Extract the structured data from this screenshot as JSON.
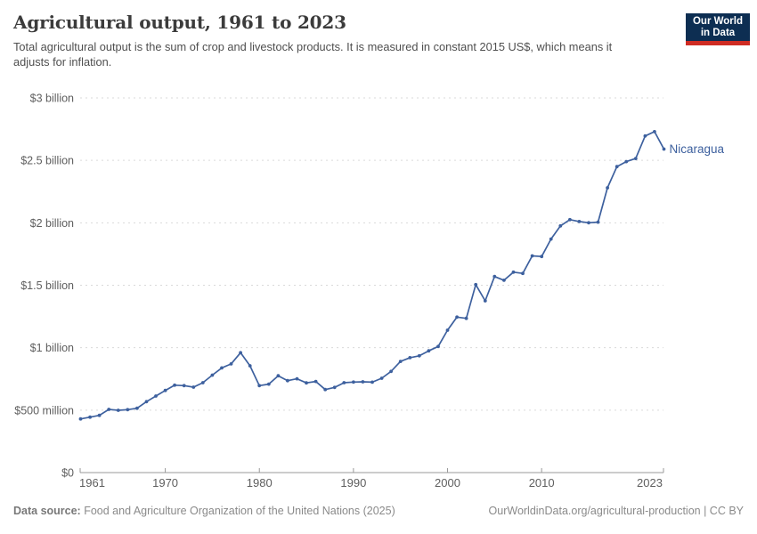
{
  "header": {
    "title": "Agricultural output, 1961 to 2023",
    "subtitle": "Total agricultural output is the sum of crop and livestock products. It is measured in constant 2015 US$, which means it adjusts for inflation.",
    "logo": {
      "line1": "Our World",
      "line2": "in Data",
      "bg_color": "#0d2e52",
      "bar_color": "#cf2c23"
    }
  },
  "chart_data": {
    "type": "line",
    "title": "Agricultural output, 1961 to 2023",
    "entity_label": "Nicaragua",
    "unit": "constant 2015 US$",
    "values_unit": "million US$",
    "line_color": "#3d609e",
    "grid": true,
    "legend_position": "end-of-line",
    "xlim": [
      1961,
      2023
    ],
    "ylim": [
      0,
      3000
    ],
    "x_ticks": [
      1961,
      1970,
      1980,
      1990,
      2000,
      2010,
      2023
    ],
    "y_ticks": [
      {
        "label": "$0",
        "value": 0
      },
      {
        "label": "$500 million",
        "value": 500
      },
      {
        "label": "$1 billion",
        "value": 1000
      },
      {
        "label": "$1.5 billion",
        "value": 1500
      },
      {
        "label": "$2 billion",
        "value": 2000
      },
      {
        "label": "$2.5 billion",
        "value": 2500
      },
      {
        "label": "$3 billion",
        "value": 3000
      }
    ],
    "x": [
      1961,
      1962,
      1963,
      1964,
      1965,
      1966,
      1967,
      1968,
      1969,
      1970,
      1971,
      1972,
      1973,
      1974,
      1975,
      1976,
      1977,
      1978,
      1979,
      1980,
      1981,
      1982,
      1983,
      1984,
      1985,
      1986,
      1987,
      1988,
      1989,
      1990,
      1991,
      1992,
      1993,
      1994,
      1995,
      1996,
      1997,
      1998,
      1999,
      2000,
      2001,
      2002,
      2003,
      2004,
      2005,
      2006,
      2007,
      2008,
      2009,
      2010,
      2011,
      2012,
      2013,
      2014,
      2015,
      2016,
      2017,
      2018,
      2019,
      2020,
      2021,
      2022,
      2023
    ],
    "series": [
      {
        "name": "Nicaragua",
        "values": [
          430,
          444,
          458,
          506,
          499,
          504,
          515,
          568,
          613,
          658,
          700,
          696,
          684,
          720,
          780,
          838,
          870,
          960,
          855,
          696,
          708,
          775,
          736,
          751,
          718,
          730,
          665,
          682,
          720,
          725,
          727,
          724,
          755,
          810,
          890,
          920,
          935,
          975,
          1010,
          1140,
          1245,
          1235,
          1505,
          1375,
          1570,
          1540,
          1605,
          1595,
          1735,
          1730,
          1870,
          1975,
          2025,
          2010,
          2000,
          2005,
          2280,
          2450,
          2490,
          2515,
          2695,
          2730,
          2590
        ]
      }
    ]
  },
  "footer": {
    "source_label": "Data source:",
    "source_text": "Food and Agriculture Organization of the United Nations (2025)",
    "right_text": "OurWorldinData.org/agricultural-production | CC BY"
  }
}
